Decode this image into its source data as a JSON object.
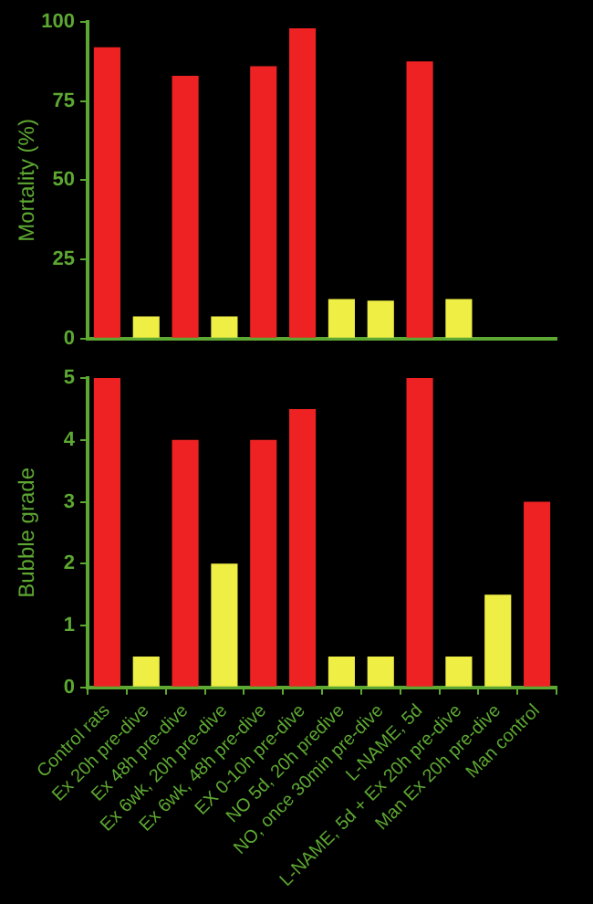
{
  "chart_data": [
    {
      "type": "bar",
      "ylabel": "Mortality (%)",
      "categories": [
        null,
        null,
        null,
        null,
        null,
        null,
        null,
        null,
        null,
        null,
        null,
        null
      ],
      "values": [
        92,
        7,
        83,
        7,
        86,
        98,
        12.5,
        12,
        87.5,
        12.5,
        null,
        null
      ],
      "colors": [
        "#ee2222",
        "#eeee44",
        "#ee2222",
        "#eeee44",
        "#ee2222",
        "#ee2222",
        "#eeee44",
        "#eeee44",
        "#ee2222",
        "#eeee44",
        "#eeee44",
        "#ee2222"
      ],
      "ylim": [
        0,
        100
      ],
      "yticks": [
        0,
        25,
        50,
        75,
        100
      ],
      "grid": false,
      "legend": false,
      "tick_labels": "y"
    },
    {
      "type": "bar",
      "ylabel": "Bubble grade",
      "categories": [
        "Control rats",
        "Ex 20h pre-dive",
        "Ex 48h pre-dive",
        "Ex 6wk, 20h pre-dive",
        "Ex 6wk, 48h pre-dive",
        "EX 0-10h pre-dive",
        "NO 5d, 20h predive",
        "NO, once 30min pre-dive",
        "L-NAME, 5d",
        "L-NAME, 5d + Ex 20h pre-dive",
        "Man Ex 20h pre-dive",
        "Man control"
      ],
      "values": [
        5,
        0.5,
        4,
        2,
        4,
        4.5,
        0.5,
        0.5,
        5,
        0.5,
        1.5,
        3
      ],
      "colors": [
        "#ee2222",
        "#eeee44",
        "#ee2222",
        "#eeee44",
        "#ee2222",
        "#ee2222",
        "#eeee44",
        "#eeee44",
        "#ee2222",
        "#eeee44",
        "#eeee44",
        "#ee2222"
      ],
      "ylim": [
        0,
        5
      ],
      "yticks": [
        0,
        1,
        2,
        3,
        4,
        5
      ],
      "grid": false,
      "legend": false
    }
  ]
}
